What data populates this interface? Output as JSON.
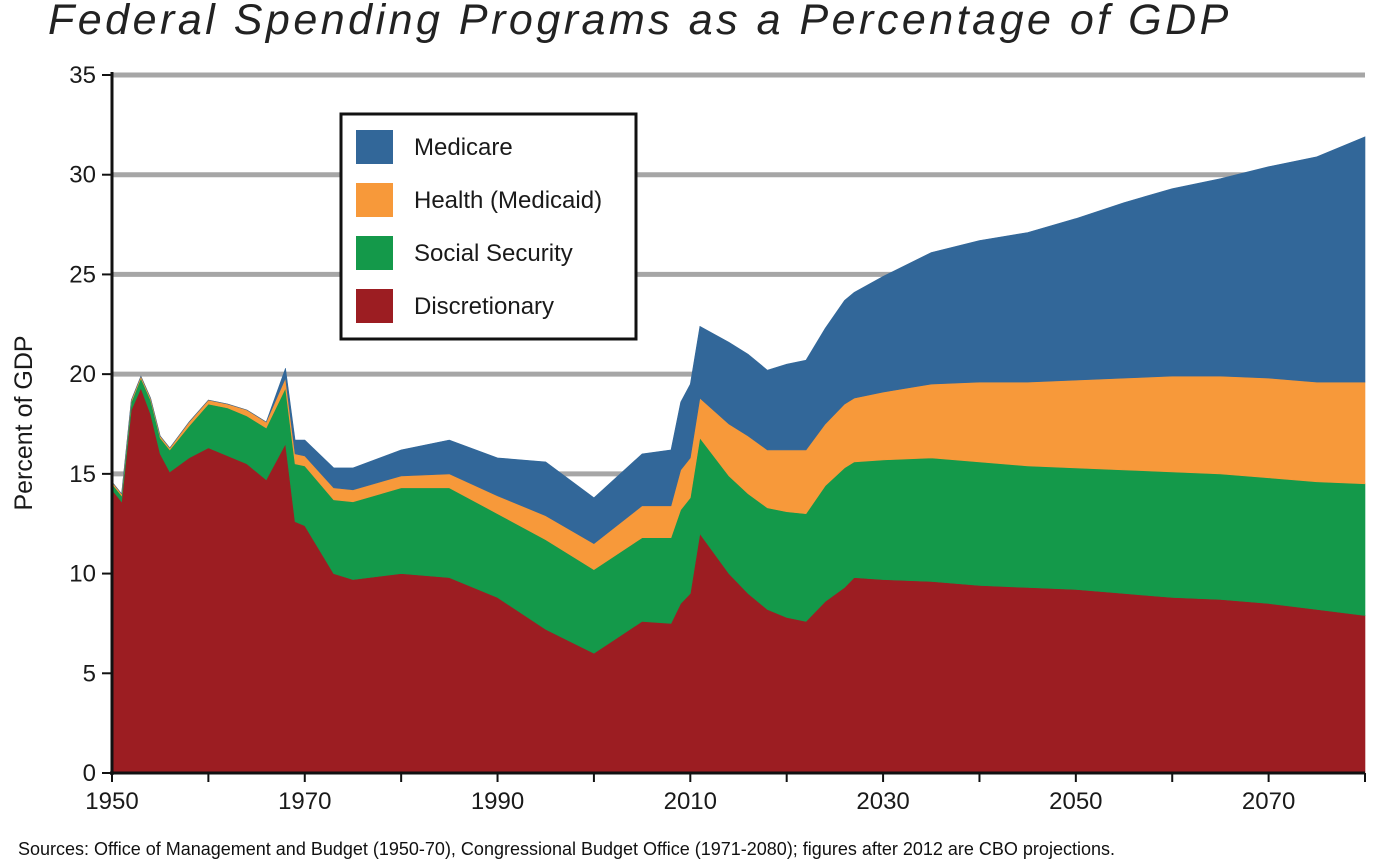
{
  "chart_data": {
    "type": "area",
    "stacked": true,
    "title": "Federal Spending Programs as a Percentage of GDP",
    "ylabel": "Percent of GDP",
    "xlabel": "",
    "xlim": [
      1950,
      2080
    ],
    "ylim": [
      0,
      35
    ],
    "x_ticks": [
      1950,
      1970,
      1990,
      2010,
      2030,
      2050,
      2070
    ],
    "y_ticks": [
      0,
      5,
      10,
      15,
      20,
      25,
      30,
      35
    ],
    "grid": "horizontal",
    "legend_position": "top-left",
    "source": "Sources: Office of Management and Budget (1950-70), Congressional Budget Office (1971-2080); figures after 2012 are CBO projections.",
    "x": [
      1950,
      1951,
      1952,
      1953,
      1954,
      1955,
      1956,
      1958,
      1960,
      1962,
      1964,
      1966,
      1968,
      1969,
      1970,
      1973,
      1975,
      1980,
      1985,
      1990,
      1995,
      2000,
      2005,
      2008,
      2009,
      2010,
      2011,
      2014,
      2016,
      2018,
      2020,
      2022,
      2024,
      2026,
      2027,
      2030,
      2035,
      2040,
      2045,
      2050,
      2055,
      2060,
      2065,
      2070,
      2075,
      2080
    ],
    "series": [
      {
        "name": "Discretionary",
        "color": "#9c1d22",
        "values": [
          14.2,
          13.6,
          18.2,
          19.3,
          18.0,
          16.0,
          15.1,
          15.8,
          16.3,
          15.9,
          15.5,
          14.7,
          16.5,
          12.6,
          12.4,
          10.0,
          9.7,
          10.0,
          9.8,
          8.8,
          7.2,
          6.0,
          7.6,
          7.5,
          8.5,
          9.0,
          12.0,
          10.0,
          9.0,
          8.2,
          7.8,
          7.6,
          8.6,
          9.3,
          9.8,
          9.7,
          9.6,
          9.4,
          9.3,
          9.2,
          9.0,
          8.8,
          8.7,
          8.5,
          8.2,
          7.9
        ]
      },
      {
        "name": "Social Security",
        "color": "#14994a",
        "values": [
          0.3,
          0.3,
          0.4,
          0.5,
          0.7,
          0.8,
          1.1,
          1.6,
          2.2,
          2.4,
          2.4,
          2.6,
          2.8,
          2.9,
          3.0,
          3.7,
          3.9,
          4.3,
          4.5,
          4.2,
          4.5,
          4.2,
          4.2,
          4.3,
          4.7,
          4.8,
          4.8,
          4.9,
          5.0,
          5.1,
          5.3,
          5.4,
          5.8,
          6.0,
          5.8,
          6.0,
          6.2,
          6.2,
          6.1,
          6.1,
          6.2,
          6.3,
          6.3,
          6.3,
          6.4,
          6.6
        ]
      },
      {
        "name": "Health (Medicaid)",
        "color": "#f7993a",
        "values": [
          0.1,
          0.1,
          0.1,
          0.1,
          0.1,
          0.1,
          0.1,
          0.2,
          0.2,
          0.2,
          0.3,
          0.3,
          0.5,
          0.5,
          0.5,
          0.6,
          0.6,
          0.6,
          0.7,
          0.9,
          1.2,
          1.3,
          1.6,
          1.6,
          2.0,
          2.0,
          2.0,
          2.6,
          2.9,
          2.9,
          3.1,
          3.2,
          3.1,
          3.2,
          3.2,
          3.4,
          3.7,
          4.0,
          4.2,
          4.4,
          4.6,
          4.8,
          4.9,
          5.0,
          5.0,
          5.1
        ]
      },
      {
        "name": "Medicare",
        "color": "#326799",
        "values": [
          0,
          0,
          0,
          0,
          0,
          0,
          0,
          0,
          0,
          0,
          0,
          0,
          0.5,
          0.7,
          0.8,
          1.0,
          1.1,
          1.3,
          1.7,
          1.9,
          2.7,
          2.3,
          2.6,
          2.8,
          3.4,
          3.7,
          3.6,
          4.1,
          4.1,
          4.0,
          4.3,
          4.5,
          4.8,
          5.2,
          5.3,
          5.8,
          6.6,
          7.1,
          7.5,
          8.1,
          8.8,
          9.4,
          9.9,
          10.6,
          11.3,
          12.3
        ]
      }
    ]
  }
}
